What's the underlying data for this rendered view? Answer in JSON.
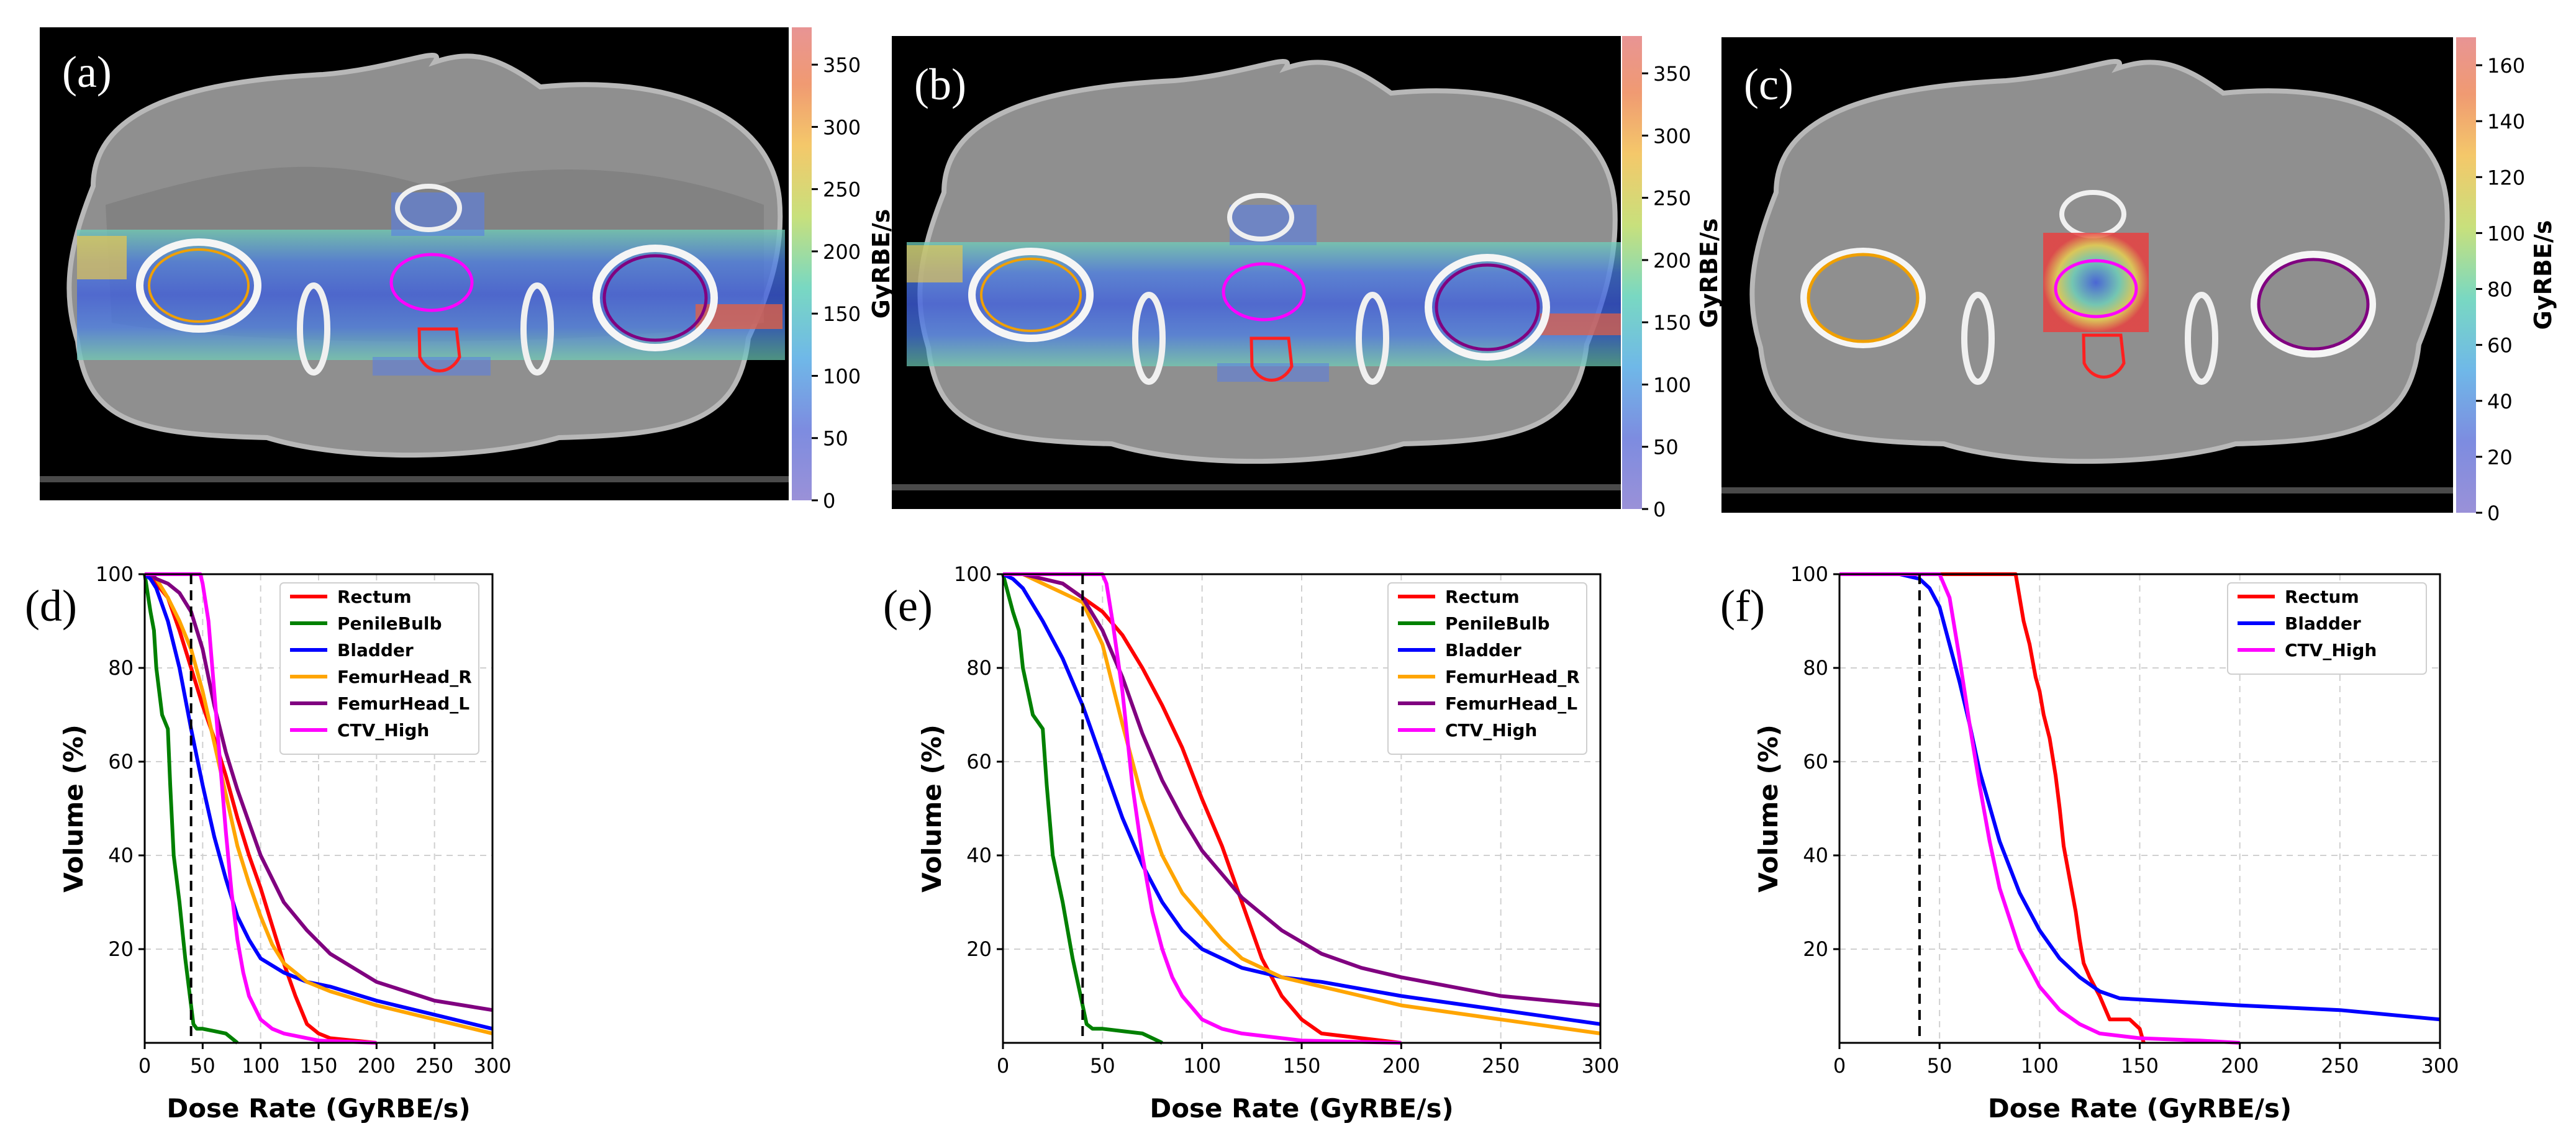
{
  "figure": {
    "panels_top": [
      {
        "label": "(a)",
        "colorbar": {
          "label": "GyRBE/s",
          "ticks": [
            0,
            50,
            100,
            150,
            200,
            250,
            300,
            350
          ],
          "max": 380
        }
      },
      {
        "label": "(b)",
        "colorbar": {
          "label": "GyRBE/s",
          "ticks": [
            0,
            50,
            100,
            150,
            200,
            250,
            300,
            350
          ],
          "max": 380
        }
      },
      {
        "label": "(c)",
        "colorbar": {
          "label": "GyRBE/s",
          "ticks": [
            0,
            20,
            40,
            60,
            80,
            100,
            120,
            140,
            160
          ],
          "max": 170
        }
      }
    ],
    "colors": {
      "Rectum": "#ff0000",
      "PenileBulb": "#008000",
      "Bladder": "#0000ff",
      "FemurHead_R": "#ffa500",
      "FemurHead_L": "#800080",
      "CTV_High": "#ff00ff",
      "threshold": "#000000"
    }
  },
  "chart_data": [
    {
      "label": "(d)",
      "type": "line",
      "xlabel": "Dose Rate (GyRBE/s)",
      "ylabel": "Volume (%)",
      "xlim": [
        0,
        300
      ],
      "ylim": [
        0,
        100
      ],
      "xticks": [
        0,
        50,
        100,
        150,
        200,
        250,
        300
      ],
      "yticks": [
        20,
        40,
        60,
        80,
        100
      ],
      "threshold_x": 40,
      "legend": "top-right",
      "series": [
        {
          "name": "Rectum",
          "x": [
            0,
            5,
            10,
            20,
            30,
            40,
            50,
            60,
            70,
            80,
            90,
            100,
            110,
            120,
            130,
            140,
            150,
            160,
            180,
            200
          ],
          "y": [
            100,
            100,
            98,
            95,
            88,
            80,
            72,
            65,
            57,
            48,
            40,
            33,
            25,
            17,
            10,
            4,
            2,
            1,
            0.5,
            0
          ]
        },
        {
          "name": "PenileBulb",
          "x": [
            0,
            5,
            8,
            10,
            15,
            20,
            22,
            25,
            30,
            35,
            38,
            40,
            42,
            45,
            50,
            60,
            70,
            80
          ],
          "y": [
            100,
            92,
            88,
            80,
            70,
            67,
            55,
            40,
            30,
            18,
            12,
            8,
            4,
            3,
            3,
            2.5,
            2,
            0
          ]
        },
        {
          "name": "Bladder",
          "x": [
            0,
            5,
            10,
            20,
            30,
            40,
            50,
            60,
            70,
            80,
            90,
            100,
            120,
            140,
            160,
            200,
            250,
            300
          ],
          "y": [
            100,
            99,
            97,
            90,
            80,
            67,
            55,
            44,
            35,
            27,
            22,
            18,
            15,
            13,
            12,
            9,
            6,
            3
          ]
        },
        {
          "name": "FemurHead_R",
          "x": [
            0,
            5,
            10,
            20,
            30,
            40,
            50,
            60,
            70,
            80,
            90,
            100,
            110,
            120,
            140,
            160,
            200,
            250,
            300
          ],
          "y": [
            100,
            100,
            99,
            95,
            90,
            84,
            75,
            64,
            53,
            42,
            34,
            27,
            21,
            17,
            13,
            11,
            8,
            5,
            2
          ]
        },
        {
          "name": "FemurHead_L",
          "x": [
            0,
            5,
            10,
            20,
            30,
            40,
            50,
            60,
            70,
            80,
            90,
            100,
            120,
            140,
            160,
            180,
            200,
            250,
            300
          ],
          "y": [
            100,
            100,
            99,
            98,
            96,
            92,
            84,
            72,
            62,
            54,
            47,
            40,
            30,
            24,
            19,
            16,
            13,
            9,
            7
          ]
        },
        {
          "name": "CTV_High",
          "x": [
            0,
            10,
            20,
            30,
            40,
            48,
            50,
            55,
            60,
            65,
            70,
            75,
            80,
            85,
            90,
            100,
            110,
            120,
            150,
            200
          ],
          "y": [
            100,
            100,
            100,
            100,
            100,
            100,
            98,
            90,
            75,
            60,
            45,
            32,
            22,
            15,
            10,
            5,
            3,
            2,
            0.5,
            0
          ]
        }
      ]
    },
    {
      "label": "(e)",
      "type": "line",
      "xlabel": "Dose Rate (GyRBE/s)",
      "ylabel": "Volume (%)",
      "xlim": [
        0,
        300
      ],
      "ylim": [
        0,
        100
      ],
      "xticks": [
        0,
        50,
        100,
        150,
        200,
        250,
        300
      ],
      "yticks": [
        20,
        40,
        60,
        80,
        100
      ],
      "threshold_x": 40,
      "legend": "top-right",
      "series": [
        {
          "name": "Rectum",
          "x": [
            0,
            10,
            20,
            30,
            40,
            50,
            60,
            70,
            80,
            90,
            100,
            110,
            120,
            130,
            140,
            150,
            160,
            180,
            200
          ],
          "y": [
            100,
            100,
            99,
            98,
            95,
            92,
            87,
            80,
            72,
            63,
            52,
            42,
            30,
            18,
            10,
            5,
            2,
            1,
            0
          ]
        },
        {
          "name": "PenileBulb",
          "x": [
            0,
            5,
            8,
            10,
            15,
            20,
            22,
            25,
            30,
            35,
            38,
            40,
            42,
            45,
            50,
            60,
            70,
            80
          ],
          "y": [
            100,
            92,
            88,
            80,
            70,
            67,
            55,
            40,
            30,
            18,
            12,
            8,
            4,
            3,
            3,
            2.5,
            2,
            0
          ]
        },
        {
          "name": "Bladder",
          "x": [
            0,
            5,
            10,
            20,
            30,
            40,
            50,
            60,
            70,
            80,
            90,
            100,
            120,
            140,
            160,
            200,
            250,
            300
          ],
          "y": [
            100,
            99,
            97,
            90,
            82,
            72,
            60,
            48,
            38,
            30,
            24,
            20,
            16,
            14,
            13,
            10,
            7,
            4
          ]
        },
        {
          "name": "FemurHead_R",
          "x": [
            0,
            10,
            20,
            30,
            40,
            50,
            60,
            70,
            80,
            90,
            100,
            110,
            120,
            140,
            160,
            200,
            250,
            300
          ],
          "y": [
            100,
            100,
            98,
            96,
            94,
            85,
            68,
            52,
            40,
            32,
            27,
            22,
            18,
            14,
            12,
            8,
            5,
            2
          ]
        },
        {
          "name": "FemurHead_L",
          "x": [
            0,
            10,
            20,
            30,
            40,
            50,
            60,
            70,
            80,
            90,
            100,
            110,
            120,
            140,
            160,
            180,
            200,
            250,
            300
          ],
          "y": [
            100,
            100,
            99,
            98,
            95,
            88,
            78,
            66,
            56,
            48,
            41,
            36,
            31,
            24,
            19,
            16,
            14,
            10,
            8
          ]
        },
        {
          "name": "CTV_High",
          "x": [
            0,
            10,
            20,
            30,
            40,
            50,
            52,
            55,
            60,
            65,
            70,
            75,
            80,
            85,
            90,
            100,
            110,
            120,
            150,
            200
          ],
          "y": [
            100,
            100,
            100,
            100,
            100,
            100,
            98,
            90,
            75,
            55,
            40,
            28,
            20,
            14,
            10,
            5,
            3,
            2,
            0.5,
            0
          ]
        }
      ]
    },
    {
      "label": "(f)",
      "type": "line",
      "xlabel": "Dose Rate (GyRBE/s)",
      "ylabel": "Volume (%)",
      "xlim": [
        0,
        300
      ],
      "ylim": [
        0,
        100
      ],
      "xticks": [
        0,
        50,
        100,
        150,
        200,
        250,
        300
      ],
      "yticks": [
        20,
        40,
        60,
        80,
        100
      ],
      "threshold_x": 40,
      "legend": "top-right",
      "series": [
        {
          "name": "Rectum",
          "x": [
            0,
            50,
            80,
            88,
            90,
            92,
            95,
            98,
            100,
            102,
            105,
            108,
            110,
            112,
            115,
            118,
            120,
            122,
            125,
            130,
            135,
            140,
            145,
            150,
            152
          ],
          "y": [
            100,
            100,
            100,
            100,
            95,
            90,
            85,
            78,
            75,
            70,
            65,
            57,
            50,
            42,
            35,
            28,
            22,
            17,
            14,
            10,
            5,
            5,
            5,
            3,
            0
          ]
        },
        {
          "name": "Bladder",
          "x": [
            0,
            30,
            40,
            45,
            50,
            55,
            60,
            65,
            70,
            80,
            90,
            100,
            110,
            120,
            130,
            140,
            160,
            200,
            250,
            300
          ],
          "y": [
            100,
            100,
            99,
            97,
            93,
            85,
            77,
            68,
            58,
            43,
            32,
            24,
            18,
            14,
            11,
            9.5,
            9,
            8,
            7,
            5
          ]
        },
        {
          "name": "CTV_High",
          "x": [
            0,
            40,
            50,
            55,
            60,
            65,
            70,
            75,
            80,
            90,
            100,
            110,
            120,
            130,
            150,
            180,
            200
          ],
          "y": [
            100,
            100,
            100,
            95,
            82,
            68,
            55,
            43,
            33,
            20,
            12,
            7,
            4,
            2,
            1,
            0.5,
            0
          ]
        }
      ]
    }
  ]
}
